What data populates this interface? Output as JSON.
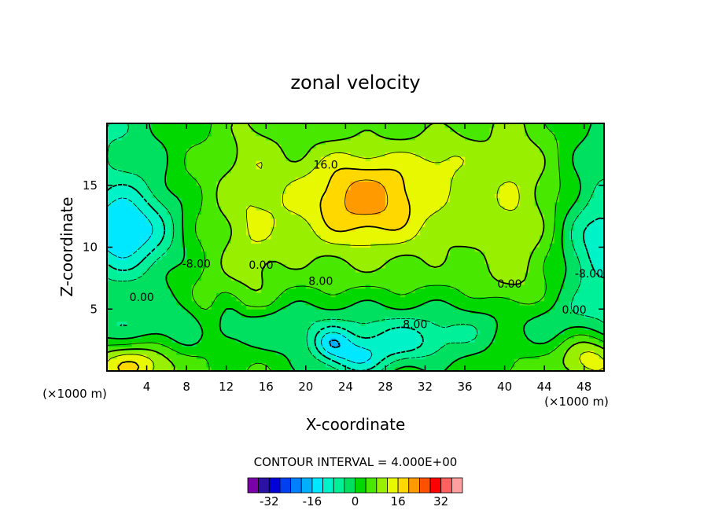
{
  "chart_data": {
    "type": "heatmap",
    "subtype": "filled-contour",
    "title": "zonal velocity",
    "xlabel": "X-coordinate",
    "ylabel": "Z-coordinate",
    "x_unit": "(×1000 m)",
    "xlim": [
      0,
      50
    ],
    "ylim": [
      0,
      20
    ],
    "x_ticks": [
      4,
      8,
      12,
      16,
      20,
      24,
      28,
      32,
      36,
      40,
      44,
      48
    ],
    "y_ticks": [
      5,
      10,
      15
    ],
    "contour_interval_label": "CONTOUR INTERVAL = 4.000E+00",
    "contour_interval": 4,
    "contour_labels": [
      {
        "text": "16.0",
        "x": 22,
        "z": 16.6
      },
      {
        "text": "-8.00",
        "x": 9,
        "z": 8.6
      },
      {
        "text": "0.00",
        "x": 3.5,
        "z": 5.9
      },
      {
        "text": "0.00",
        "x": 15.5,
        "z": 8.5
      },
      {
        "text": "8.00",
        "x": 21.5,
        "z": 7.2
      },
      {
        "text": "0.00",
        "x": 40.5,
        "z": 7.0
      },
      {
        "text": "-8.00",
        "x": 48.5,
        "z": 7.8
      },
      {
        "text": "0.00",
        "x": 47,
        "z": 4.9
      },
      {
        "text": "8.00",
        "x": 31,
        "z": 3.7
      }
    ],
    "features": [
      {
        "type": "max",
        "x": 26,
        "z": 14.3,
        "value": 20
      },
      {
        "type": "min",
        "x": 1.5,
        "z": 11,
        "value": -20
      },
      {
        "type": "min",
        "x": 49.5,
        "z": 10.5,
        "value": -16
      },
      {
        "type": "min",
        "x": 26,
        "z": 0.7,
        "value": -12
      },
      {
        "type": "min",
        "x": 22.5,
        "z": 2.2,
        "value": -12
      },
      {
        "type": "max",
        "x": 3,
        "z": 1.0,
        "value": 12
      },
      {
        "type": "max",
        "x": 48,
        "z": 1.5,
        "value": 12
      }
    ],
    "colorbar": {
      "levels": [
        -36,
        -32,
        -28,
        -24,
        -20,
        -16,
        -12,
        -8,
        -4,
        0,
        4,
        8,
        12,
        16,
        20,
        24,
        28,
        32,
        36
      ],
      "tick_labels": [
        "-32",
        "-16",
        "0",
        "16",
        "32"
      ],
      "tick_values": [
        -32,
        -16,
        0,
        16,
        32
      ],
      "colors": [
        "#7a00a8",
        "#2b12a4",
        "#0000d8",
        "#0040f0",
        "#0080ff",
        "#00b0ff",
        "#00e8ff",
        "#00f2c8",
        "#00f09a",
        "#00e060",
        "#00d800",
        "#48e800",
        "#98f000",
        "#e8f800",
        "#ffd800",
        "#ff9a00",
        "#ff5000",
        "#ff0000",
        "#ff6060",
        "#ffa0a0"
      ]
    }
  }
}
